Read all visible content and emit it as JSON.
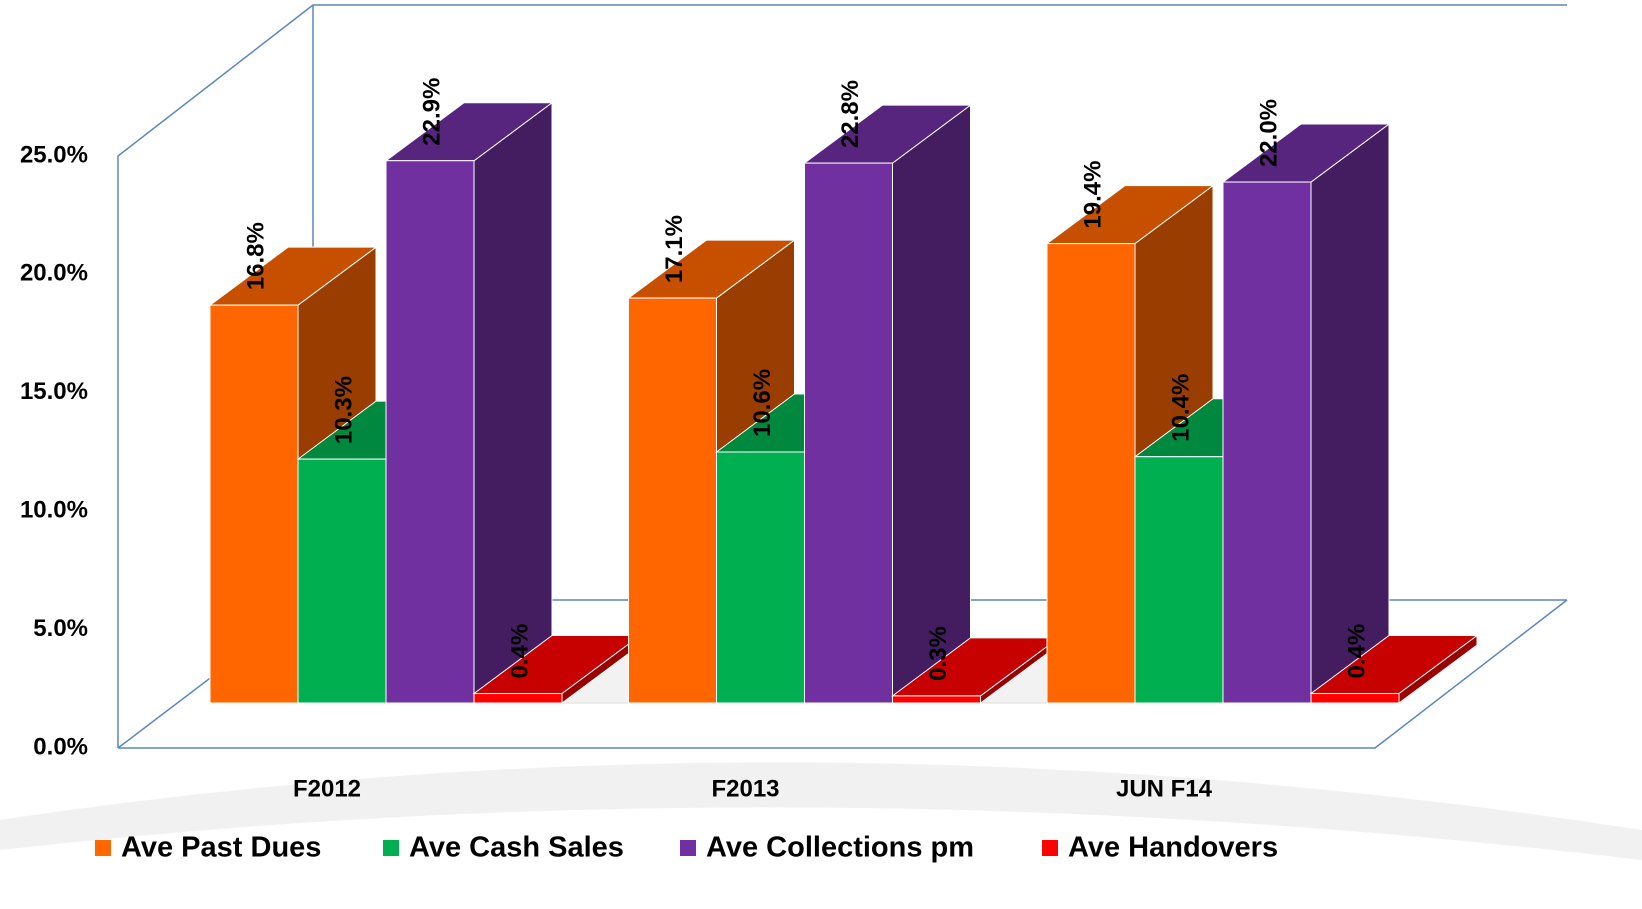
{
  "chart_data": {
    "type": "bar",
    "categories": [
      "F2012",
      "F2013",
      "JUN F14"
    ],
    "series": [
      {
        "name": "Ave Past Dues",
        "color": "#ff6600",
        "values": [
          16.8,
          17.1,
          19.4
        ],
        "value_labels": [
          "16.8%",
          "17.1%",
          "19.4%"
        ]
      },
      {
        "name": "Ave Cash Sales",
        "color": "#00b050",
        "values": [
          10.3,
          10.6,
          10.4
        ],
        "value_labels": [
          "10.3%",
          "10.6%",
          "10.4%"
        ]
      },
      {
        "name": "Ave Collections pm",
        "color": "#7030a0",
        "values": [
          22.9,
          22.8,
          22.0
        ],
        "value_labels": [
          "22.9%",
          "22.8%",
          "22.0%"
        ]
      },
      {
        "name": "Ave Handovers",
        "color": "#ff0000",
        "values": [
          0.4,
          0.3,
          0.4
        ],
        "value_labels": [
          "0.4%",
          "0.3%",
          "0.4%"
        ]
      }
    ],
    "ylim": [
      0,
      25
    ],
    "yticks": [
      {
        "value": 0,
        "label": "0.0%"
      },
      {
        "value": 5,
        "label": "5.0%"
      },
      {
        "value": 10,
        "label": "10.0%"
      },
      {
        "value": 15,
        "label": "15.0%"
      },
      {
        "value": 20,
        "label": "20.0%"
      },
      {
        "value": 25,
        "label": "25.0%"
      }
    ],
    "legend": "bottom"
  }
}
